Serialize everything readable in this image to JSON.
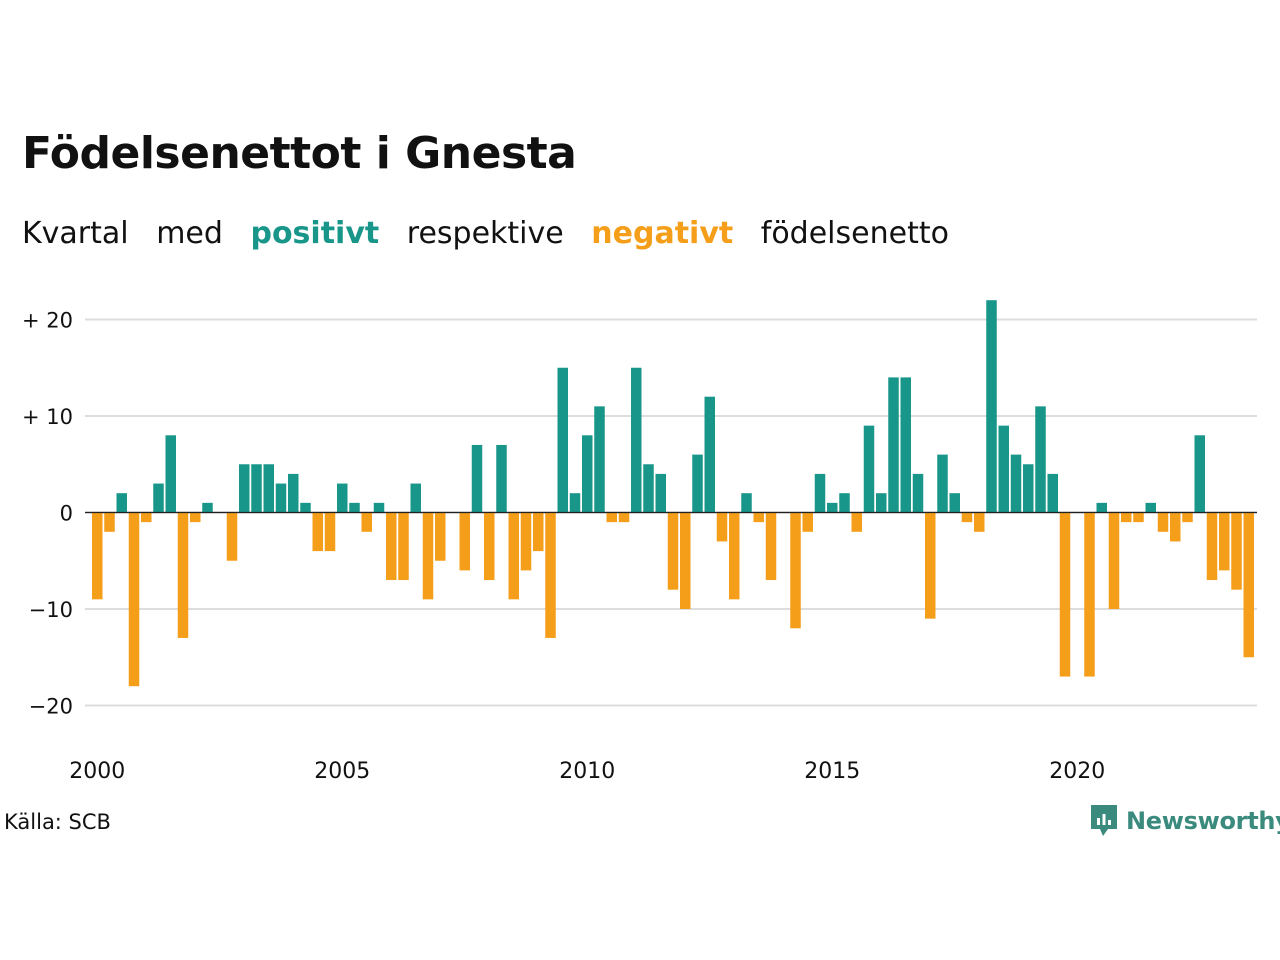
{
  "title": "Födelsenettot i Gnesta",
  "subtitle": {
    "part1": "Kvartal",
    "part2": "med",
    "positive_word": "positivt",
    "part3": "respektive",
    "negative_word": "negativt",
    "part4": "födelsenetto"
  },
  "source": "Källa: SCB",
  "logo_text": "Newsworthy",
  "colors": {
    "positive": "#18968a",
    "negative": "#f59e1a",
    "grid": "#dddddd",
    "text": "#111111",
    "logo": "#3a8a7d"
  },
  "chart_data": {
    "type": "bar",
    "x_start": "2000 Q1",
    "x_ticks": [
      {
        "year": 2000,
        "label": "2000"
      },
      {
        "year": 2005,
        "label": "2005"
      },
      {
        "year": 2010,
        "label": "2010"
      },
      {
        "year": 2015,
        "label": "2015"
      },
      {
        "year": 2020,
        "label": "2020"
      }
    ],
    "y_ticks": [
      {
        "value": 20,
        "label": "+ 20"
      },
      {
        "value": 10,
        "label": "+ 10"
      },
      {
        "value": 0,
        "label": "0"
      },
      {
        "value": -10,
        "label": "−10"
      },
      {
        "value": -20,
        "label": "−20"
      }
    ],
    "ylim": [
      -24,
      22
    ],
    "grid": true,
    "values": [
      -9,
      -2,
      2,
      -18,
      -1,
      3,
      8,
      -13,
      -1,
      1,
      0,
      -5,
      5,
      5,
      5,
      3,
      4,
      1,
      -4,
      -4,
      3,
      1,
      -2,
      1,
      -7,
      -7,
      3,
      -9,
      -5,
      0,
      -6,
      7,
      -7,
      7,
      -9,
      -6,
      -4,
      -13,
      15,
      2,
      8,
      11,
      -1,
      -1,
      15,
      5,
      4,
      -8,
      -10,
      6,
      12,
      -3,
      -9,
      2,
      -1,
      -7,
      0,
      -12,
      -2,
      4,
      1,
      2,
      -2,
      9,
      2,
      14,
      14,
      4,
      -11,
      6,
      2,
      -1,
      -2,
      22,
      9,
      6,
      5,
      11,
      4,
      -17,
      0,
      -17,
      1,
      -10,
      -1,
      -1,
      1,
      -2,
      -3,
      -1,
      8,
      -7,
      -6,
      -8,
      -15
    ]
  }
}
